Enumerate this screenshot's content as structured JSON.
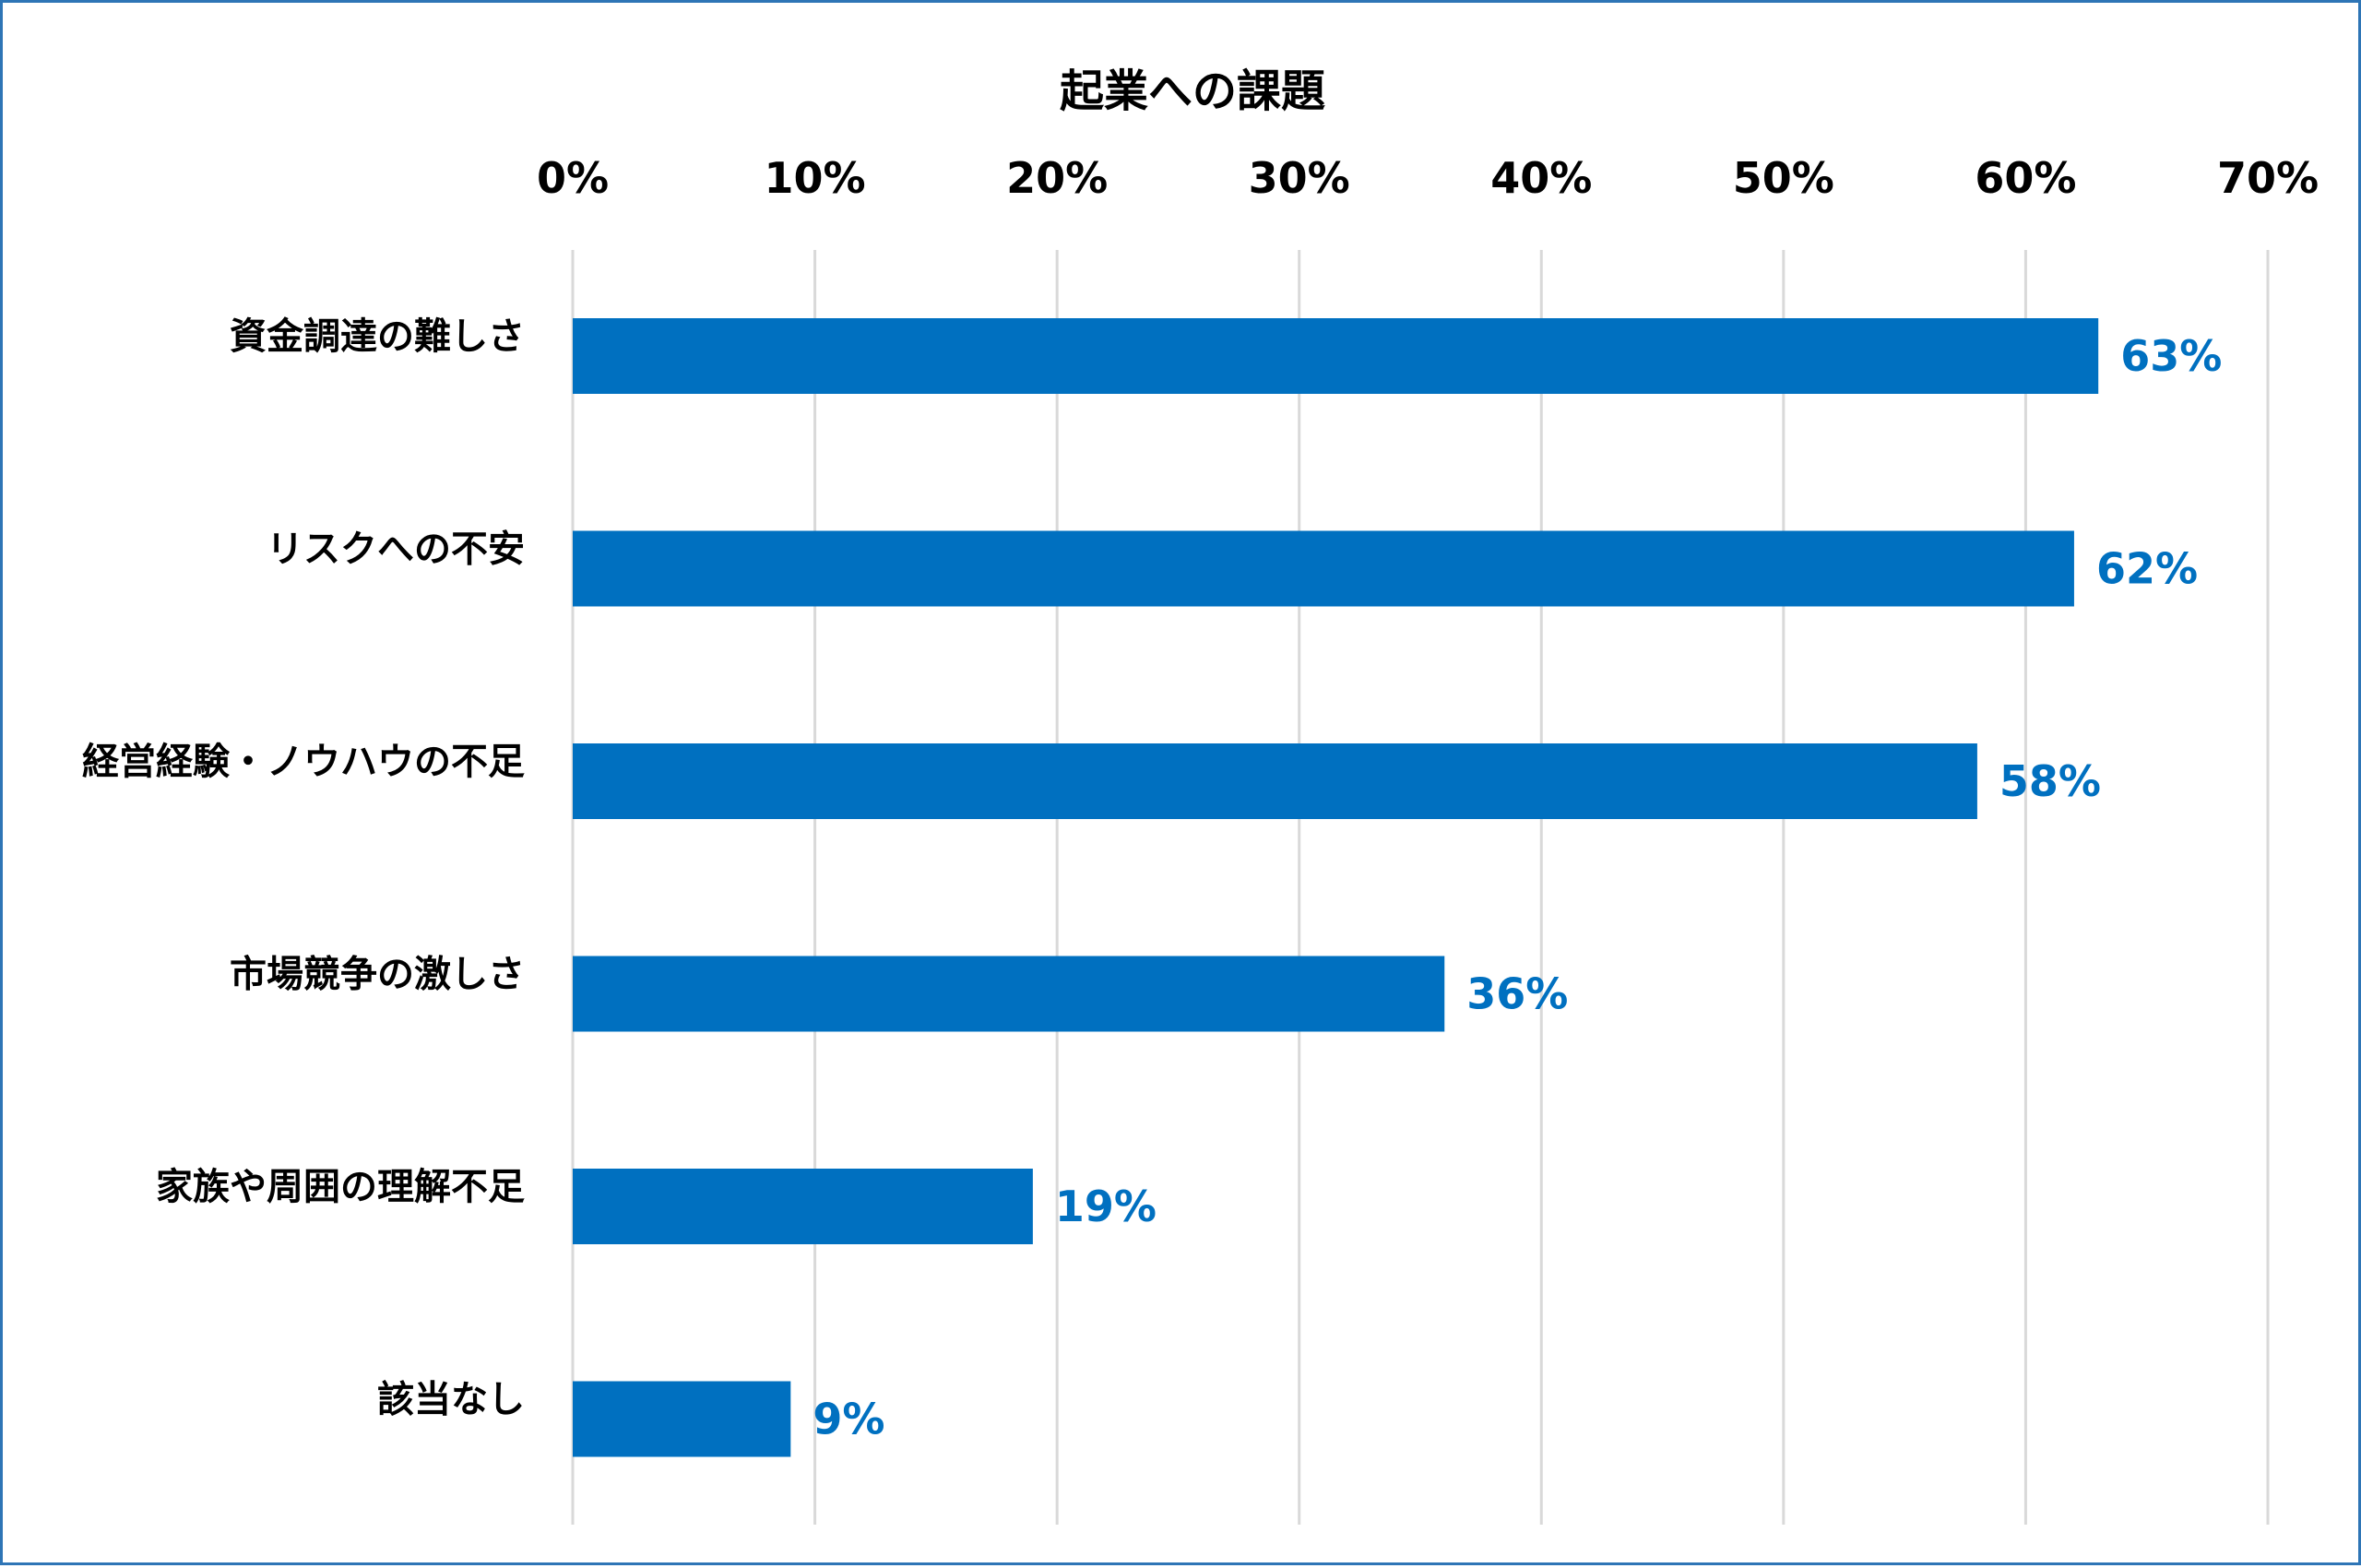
{
  "chart_data": {
    "type": "bar",
    "orientation": "horizontal",
    "title": "起業への課題",
    "categories": [
      "資金調達の難しさ",
      "リスクへの不安",
      "経営経験・ノウハウの不足",
      "市場競争の激しさ",
      "家族や周囲の理解不足",
      "該当なし"
    ],
    "values": [
      63,
      62,
      58,
      36,
      19,
      9
    ],
    "value_labels": [
      "63%",
      "62%",
      "58%",
      "36%",
      "19%",
      "9%"
    ],
    "xlim": [
      0,
      70
    ],
    "x_ticks": [
      0,
      10,
      20,
      30,
      40,
      50,
      60,
      70
    ],
    "x_tick_labels": [
      "0%",
      "10%",
      "20%",
      "30%",
      "40%",
      "50%",
      "60%",
      "70%"
    ],
    "x_axis_position": "top",
    "grid": true,
    "legend": "none",
    "colors": {
      "bar": "#0070c0",
      "value_label": "#0070c0",
      "grid": "#d9d9d9",
      "border": "#2e75b6"
    }
  }
}
